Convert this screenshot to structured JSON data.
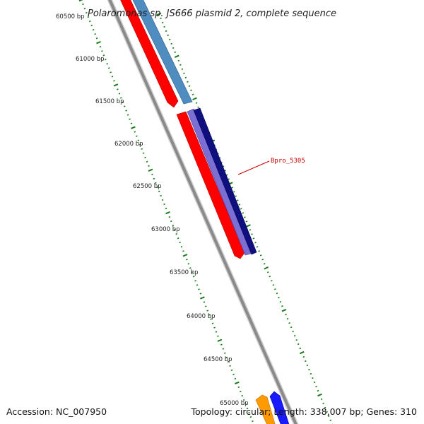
{
  "title": "Polaromonas sp. JS666 plasmid 2, complete sequence",
  "footer": {
    "accession": "Accession: NC_007950",
    "topology": "Topology: circular; Length: 338,007 bp; Genes: 310"
  },
  "bp_labels": [
    "60500 bp",
    "61000 bp",
    "61500 bp",
    "62000 bp",
    "62500 bp",
    "63000 bp",
    "63500 bp",
    "64000 bp",
    "64500 bp",
    "65000 bp"
  ],
  "gene_label": "Bpro_5305",
  "colors": {
    "backbone": "#8a8a8a",
    "tick": "#1a7a1a",
    "gene_red": "#ff0000",
    "gene_steelblue": "#4f8cc0",
    "gene_navy": "#0f0f80",
    "gene_lavender": "#7b6fd4",
    "gene_orange": "#ff9a00",
    "gene_blue": "#1a1aff",
    "label": "#cc0000"
  },
  "legend_icons": [
    "backbone-line",
    "tick-marks",
    "gene-arrows"
  ]
}
